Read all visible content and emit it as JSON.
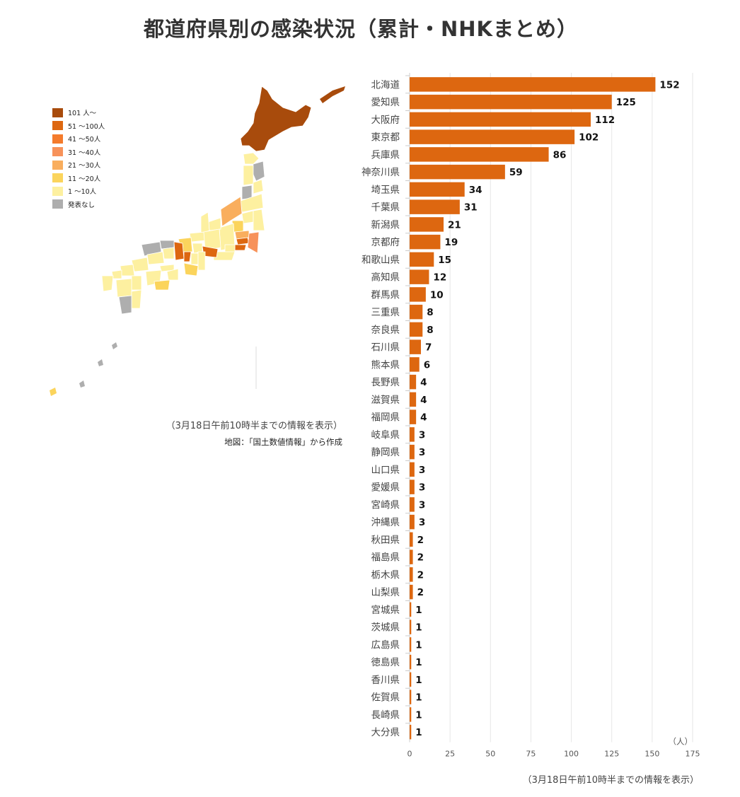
{
  "title": "都道府県別の感染状況（累計・NHKまとめ）",
  "legend": [
    {
      "label": "101 人～",
      "color": "#a84b0c"
    },
    {
      "label": "51 ～100人",
      "color": "#dd6710"
    },
    {
      "label": "41 ～50人",
      "color": "#f47b2c"
    },
    {
      "label": "31 ～40人",
      "color": "#f7925a"
    },
    {
      "label": "21 ～30人",
      "color": "#f9ae5e"
    },
    {
      "label": "11 ～20人",
      "color": "#fbd45c"
    },
    {
      "label": "1 ～10人",
      "color": "#fdf0a0"
    },
    {
      "label": "発表なし",
      "color": "#aeaeae"
    }
  ],
  "map_note": {
    "line1": "（3月18日午前10時半までの情報を表示）",
    "line2": "地図：「国土数値情報」から作成"
  },
  "bottom_note": "（3月18日午前10時半までの情報を表示）",
  "chart_data": {
    "type": "bar",
    "orientation": "horizontal",
    "bar_color": "#dd6710",
    "categories": [
      "北海道",
      "愛知県",
      "大阪府",
      "東京都",
      "兵庫県",
      "神奈川県",
      "埼玉県",
      "千葉県",
      "新潟県",
      "京都府",
      "和歌山県",
      "高知県",
      "群馬県",
      "三重県",
      "奈良県",
      "石川県",
      "熊本県",
      "長野県",
      "滋賀県",
      "福岡県",
      "岐阜県",
      "静岡県",
      "山口県",
      "愛媛県",
      "宮崎県",
      "沖縄県",
      "秋田県",
      "福島県",
      "栃木県",
      "山梨県",
      "宮城県",
      "茨城県",
      "広島県",
      "徳島県",
      "香川県",
      "佐賀県",
      "長崎県",
      "大分県"
    ],
    "values": [
      152,
      125,
      112,
      102,
      86,
      59,
      34,
      31,
      21,
      19,
      15,
      12,
      10,
      8,
      8,
      7,
      6,
      4,
      4,
      4,
      3,
      3,
      3,
      3,
      3,
      3,
      2,
      2,
      2,
      2,
      1,
      1,
      1,
      1,
      1,
      1,
      1,
      1
    ],
    "x_ticks": [
      0,
      25,
      50,
      75,
      100,
      125,
      150,
      175
    ],
    "xlim": [
      0,
      175
    ],
    "xunit": "（人）",
    "grid": true
  }
}
